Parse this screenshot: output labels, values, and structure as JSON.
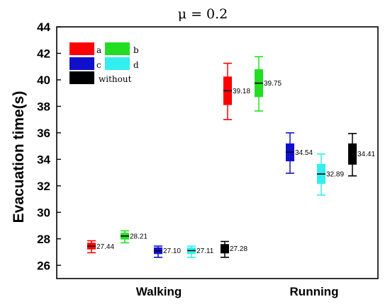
{
  "chart_data": {
    "type": "box",
    "title": "μ = 0.2",
    "ylabel": "Evacuation time(s)",
    "xlabel": "",
    "ylim": [
      25,
      44
    ],
    "yticks": [
      26,
      28,
      30,
      32,
      34,
      36,
      38,
      40,
      42,
      44
    ],
    "categories": [
      "Walking",
      "Running"
    ],
    "series": [
      {
        "name": "a",
        "color": "#ff0000",
        "data": [
          {
            "category": "Walking",
            "median": 27.44,
            "q1": 27.2,
            "q3": 27.7,
            "whisker_low": 26.95,
            "whisker_high": 27.85
          },
          {
            "category": "Running",
            "median": 39.18,
            "q1": 38.1,
            "q3": 40.25,
            "whisker_low": 37.0,
            "whisker_high": 41.25
          }
        ]
      },
      {
        "name": "b",
        "color": "#22dd22",
        "data": [
          {
            "category": "Walking",
            "median": 28.21,
            "q1": 27.95,
            "q3": 28.45,
            "whisker_low": 27.7,
            "whisker_high": 28.6
          },
          {
            "category": "Running",
            "median": 39.75,
            "q1": 38.7,
            "q3": 40.8,
            "whisker_low": 37.65,
            "whisker_high": 41.75
          }
        ]
      },
      {
        "name": "c",
        "color": "#1010cc",
        "data": [
          {
            "category": "Walking",
            "median": 27.1,
            "q1": 26.85,
            "q3": 27.35,
            "whisker_low": 26.6,
            "whisker_high": 27.45
          },
          {
            "category": "Running",
            "median": 34.54,
            "q1": 33.85,
            "q3": 35.2,
            "whisker_low": 32.95,
            "whisker_high": 36.0
          }
        ]
      },
      {
        "name": "d",
        "color": "#33eeee",
        "data": [
          {
            "category": "Walking",
            "median": 27.11,
            "q1": 26.85,
            "q3": 27.35,
            "whisker_low": 26.6,
            "whisker_high": 27.45
          },
          {
            "category": "Running",
            "median": 32.89,
            "q1": 32.15,
            "q3": 33.65,
            "whisker_low": 31.3,
            "whisker_high": 34.4
          }
        ]
      },
      {
        "name": "without",
        "color": "#000000",
        "data": [
          {
            "category": "Walking",
            "median": 27.28,
            "q1": 26.9,
            "q3": 27.6,
            "whisker_low": 26.6,
            "whisker_high": 27.8
          },
          {
            "category": "Running",
            "median": 34.41,
            "q1": 33.6,
            "q3": 35.2,
            "whisker_low": 32.75,
            "whisker_high": 35.95
          }
        ]
      }
    ],
    "value_labels": [
      [
        "27.44",
        "39.18"
      ],
      [
        "28.21",
        "39.75"
      ],
      [
        "27.10",
        "34.54"
      ],
      [
        "27.11",
        "32.89"
      ],
      [
        "27.28",
        "34.41"
      ]
    ],
    "legend": {
      "position": "top-left",
      "columns": 2
    },
    "grid": false
  }
}
